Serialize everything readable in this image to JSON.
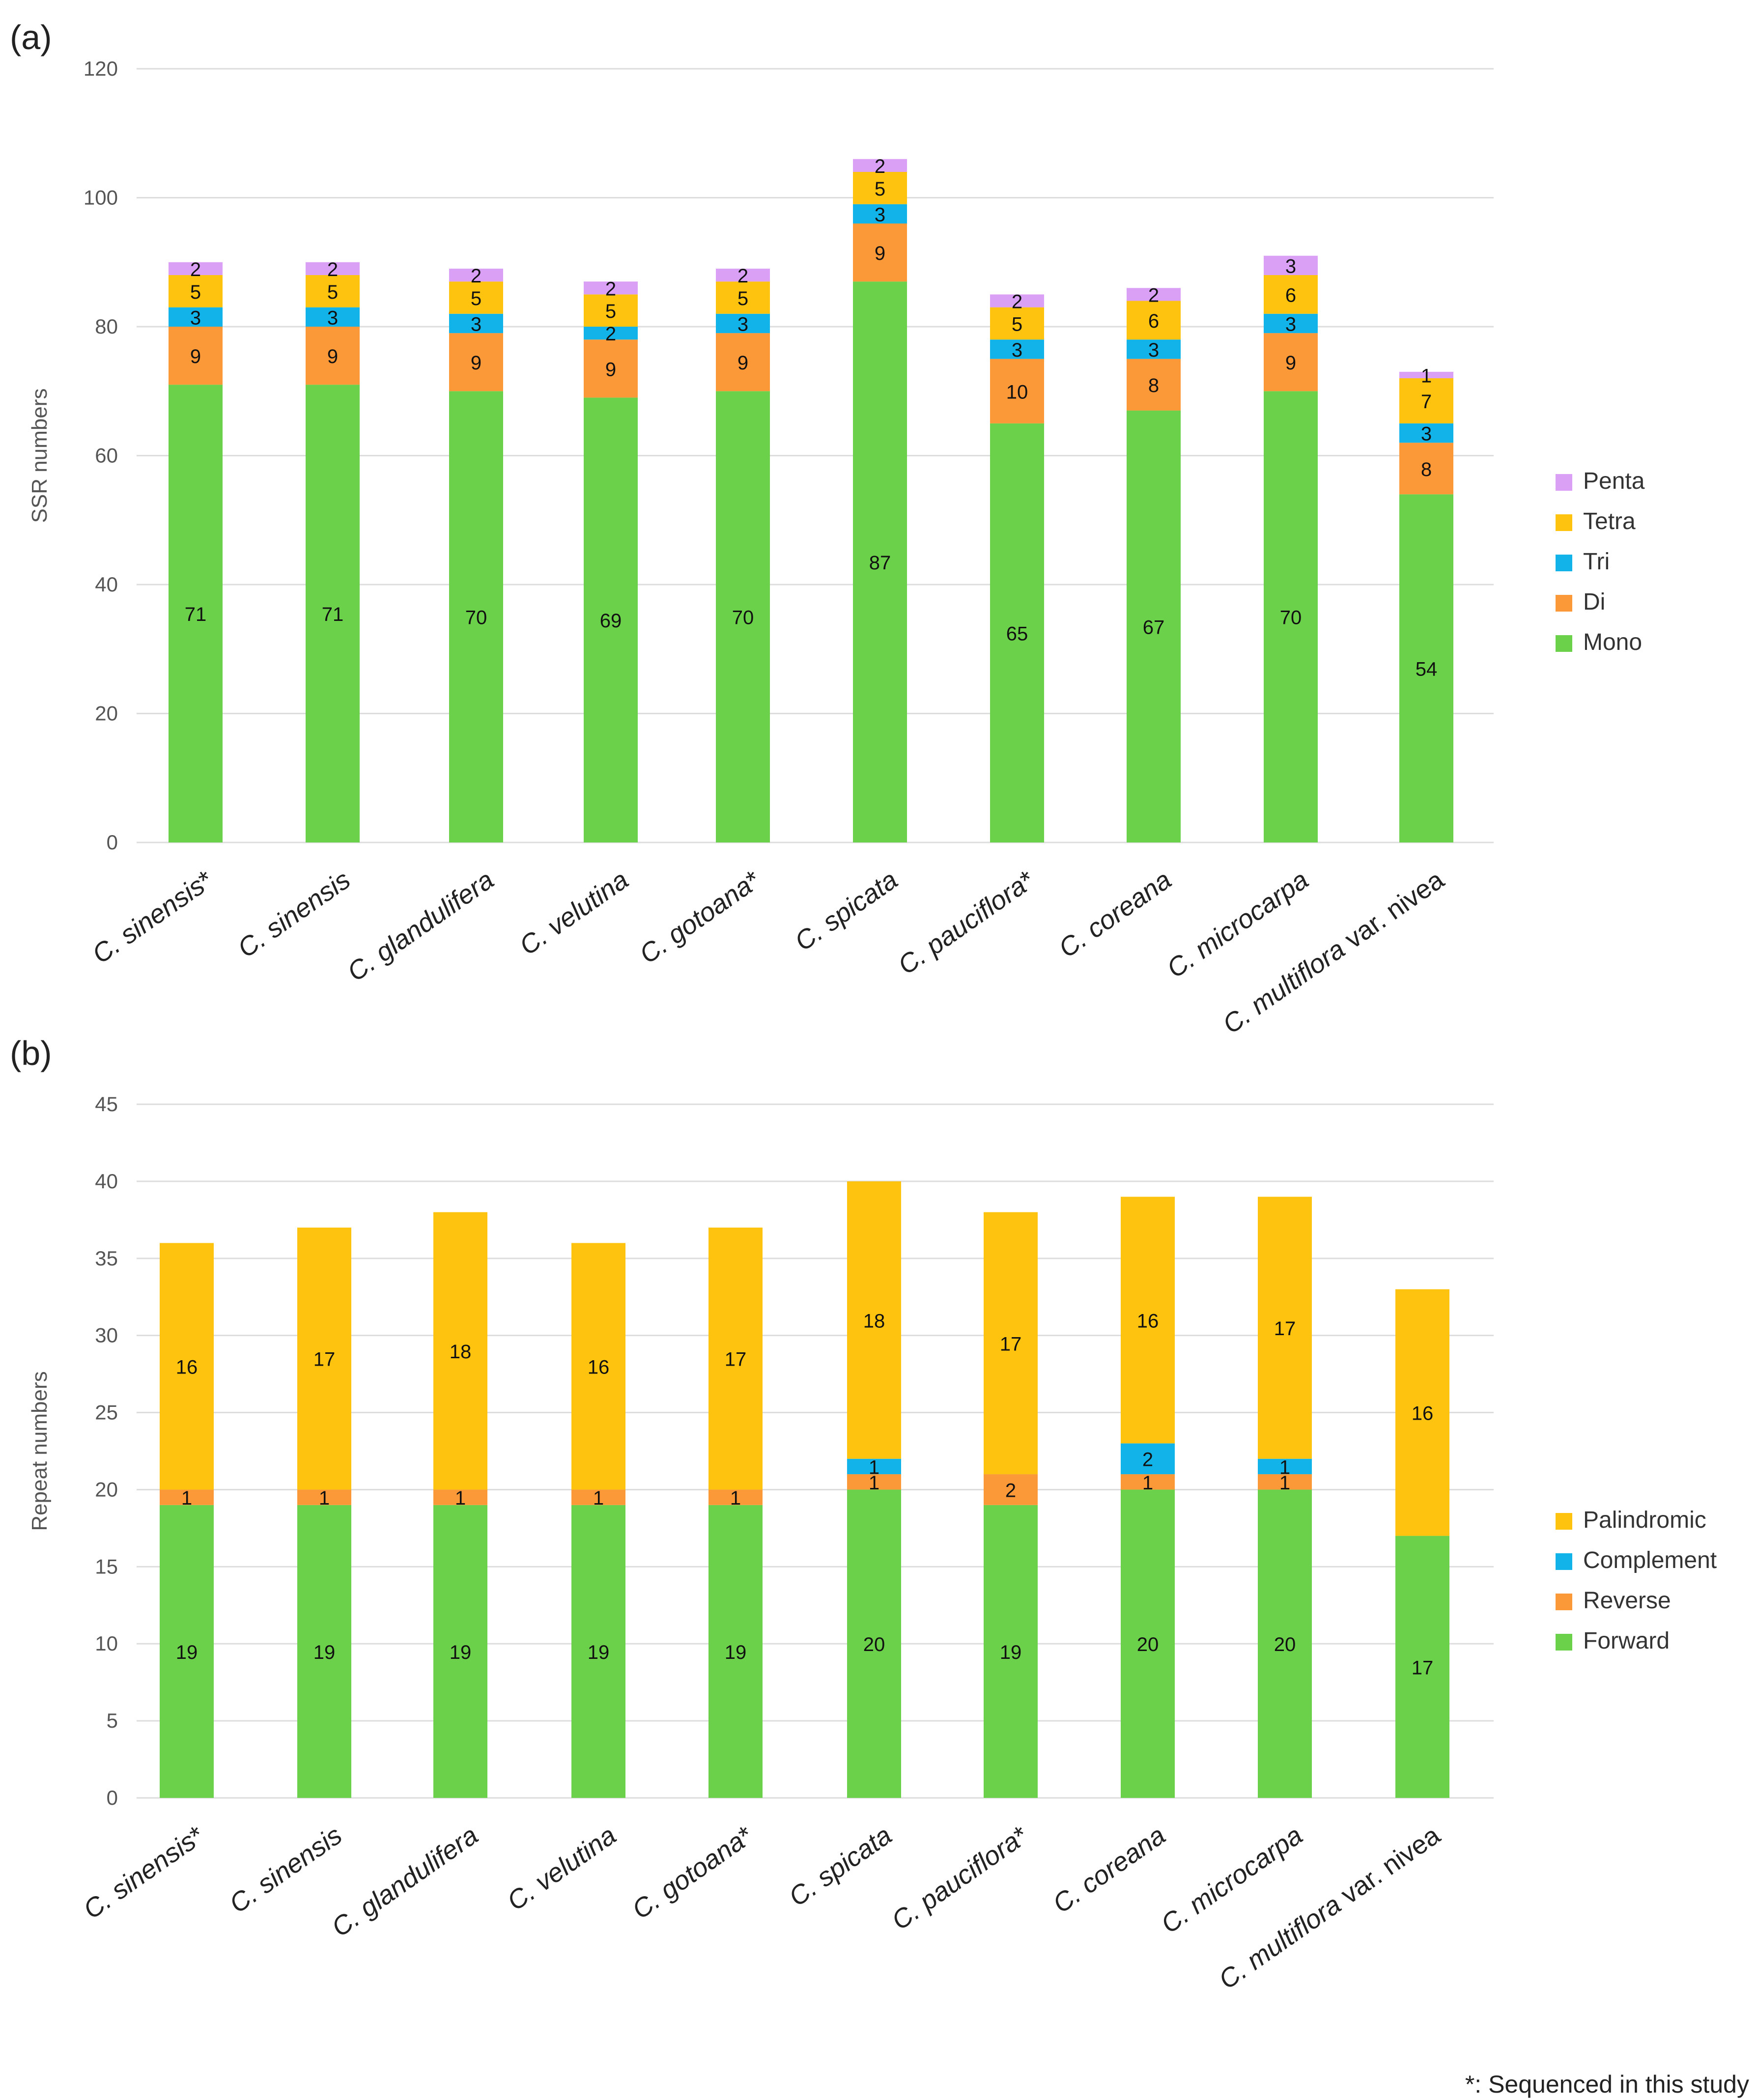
{
  "footnote": "*: Sequenced in this study",
  "colors": {
    "green": "#6cd14a",
    "orange": "#fb9837",
    "blue": "#12b3e8",
    "yellow": "#fdc30f",
    "violet": "#d9a0f5",
    "grid": "#dddddd",
    "text": "#222222",
    "axis_text": "#555555"
  },
  "chart_data": [
    {
      "panel": "(a)",
      "type": "bar",
      "stacked": true,
      "ylabel": "SSR numbers",
      "xlabel": "",
      "ylim": [
        0,
        120
      ],
      "yticks": [
        0,
        20,
        40,
        60,
        80,
        100,
        120
      ],
      "grid": true,
      "legend_position": "right",
      "categories": [
        {
          "prefix": "C. ",
          "name": "sinensis",
          "suffix": "*"
        },
        {
          "prefix": "C. ",
          "name": "sinensis",
          "suffix": ""
        },
        {
          "prefix": "C. ",
          "name": "glandulifera",
          "suffix": ""
        },
        {
          "prefix": "C. ",
          "name": "velutina",
          "suffix": ""
        },
        {
          "prefix": "C. ",
          "name": "gotoana",
          "suffix": "*"
        },
        {
          "prefix": "C. ",
          "name": "spicata",
          "suffix": ""
        },
        {
          "prefix": "C. ",
          "name": "pauciflora",
          "suffix": "*"
        },
        {
          "prefix": "C. ",
          "name": "coreana",
          "suffix": ""
        },
        {
          "prefix": "C. ",
          "name": "microcarpa",
          "suffix": ""
        },
        {
          "prefix": "C. ",
          "name": "multiflora",
          "suffix": " var. nivea"
        }
      ],
      "series": [
        {
          "name": "Mono",
          "color_key": "green",
          "values": [
            71,
            71,
            70,
            69,
            70,
            87,
            65,
            67,
            70,
            54
          ]
        },
        {
          "name": "Di",
          "color_key": "orange",
          "values": [
            9,
            9,
            9,
            9,
            9,
            9,
            10,
            8,
            9,
            8
          ]
        },
        {
          "name": "Tri",
          "color_key": "blue",
          "values": [
            3,
            3,
            3,
            2,
            3,
            3,
            3,
            3,
            3,
            3
          ]
        },
        {
          "name": "Tetra",
          "color_key": "yellow",
          "values": [
            5,
            5,
            5,
            5,
            5,
            5,
            5,
            6,
            6,
            7
          ]
        },
        {
          "name": "Penta",
          "color_key": "violet",
          "values": [
            2,
            2,
            2,
            2,
            2,
            2,
            2,
            2,
            3,
            1
          ]
        }
      ]
    },
    {
      "panel": "(b)",
      "type": "bar",
      "stacked": true,
      "ylabel": "Repeat numbers",
      "xlabel": "",
      "ylim": [
        0,
        45
      ],
      "yticks": [
        0,
        5,
        10,
        15,
        20,
        25,
        30,
        35,
        40,
        45
      ],
      "grid": true,
      "legend_position": "right",
      "categories": [
        {
          "prefix": "C. ",
          "name": "sinensis",
          "suffix": "*"
        },
        {
          "prefix": "C. ",
          "name": "sinensis",
          "suffix": ""
        },
        {
          "prefix": "C. ",
          "name": "glandulifera",
          "suffix": ""
        },
        {
          "prefix": "C. ",
          "name": "velutina",
          "suffix": ""
        },
        {
          "prefix": "C. ",
          "name": "gotoana",
          "suffix": "*"
        },
        {
          "prefix": "C. ",
          "name": "spicata",
          "suffix": ""
        },
        {
          "prefix": "C. ",
          "name": "pauciflora",
          "suffix": "*"
        },
        {
          "prefix": "C. ",
          "name": "coreana",
          "suffix": ""
        },
        {
          "prefix": "C. ",
          "name": "microcarpa",
          "suffix": ""
        },
        {
          "prefix": "C. ",
          "name": "multiflora",
          "suffix": " var. nivea"
        }
      ],
      "series": [
        {
          "name": "Forward",
          "color_key": "green",
          "values": [
            19,
            19,
            19,
            19,
            19,
            20,
            19,
            20,
            20,
            17
          ]
        },
        {
          "name": "Reverse",
          "color_key": "orange",
          "values": [
            1,
            1,
            1,
            1,
            1,
            1,
            2,
            1,
            1,
            0
          ]
        },
        {
          "name": "Complement",
          "color_key": "blue",
          "values": [
            0,
            0,
            0,
            0,
            0,
            1,
            0,
            2,
            1,
            0
          ]
        },
        {
          "name": "Palindromic",
          "color_key": "yellow",
          "values": [
            16,
            17,
            18,
            16,
            17,
            18,
            17,
            16,
            17,
            16
          ]
        }
      ]
    }
  ]
}
